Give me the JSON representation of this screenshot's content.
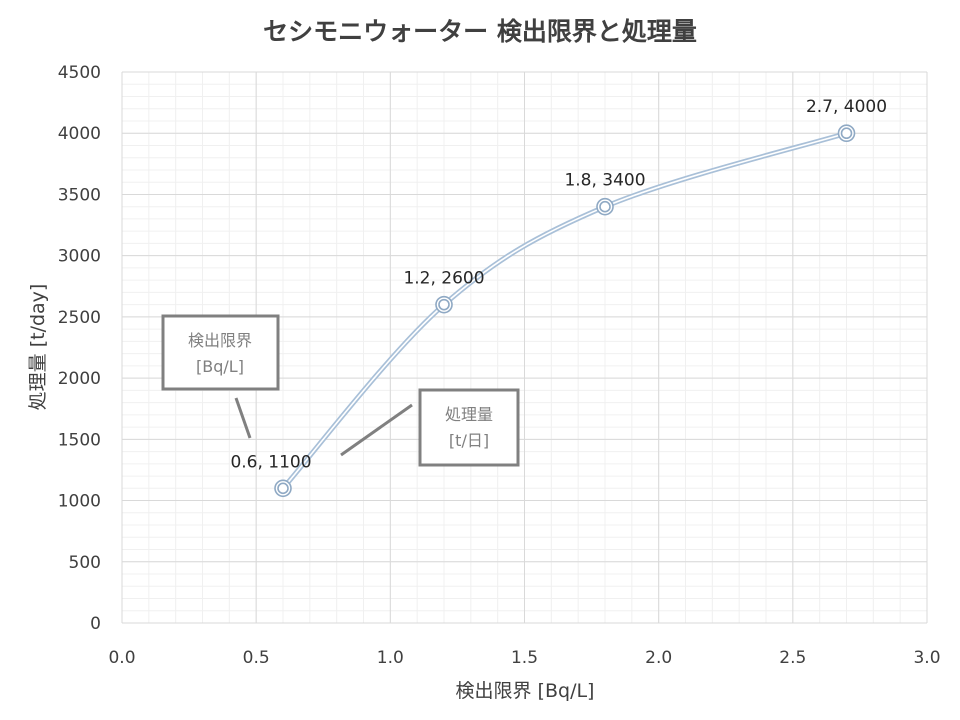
{
  "chart_data": {
    "type": "scatter",
    "title": "セシモニウォーター 検出限界と処理量",
    "xlabel": "検出限界 [Bq/L]",
    "ylabel": "処理量 [t/day]",
    "xlim": [
      0,
      3.0
    ],
    "ylim": [
      0,
      4500
    ],
    "x_major_step": 0.5,
    "y_major_step": 500,
    "x_tick_labels": [
      "0.0",
      "0.5",
      "1.0",
      "1.5",
      "2.0",
      "2.5",
      "3.0"
    ],
    "y_tick_labels": [
      "0",
      "500",
      "1000",
      "1500",
      "2000",
      "2500",
      "3000",
      "3500",
      "4000",
      "4500"
    ],
    "grid": true,
    "minor_grid": true,
    "smooth_line": true,
    "series": [
      {
        "x": [
          0.6,
          1.2,
          1.8,
          2.7
        ],
        "y": [
          1100,
          2600,
          3400,
          4000
        ],
        "labels": [
          "0.6, 1100",
          "1.2, 2600",
          "1.8, 3400",
          "2.7, 4000"
        ],
        "color": "#a9c0d8",
        "marker": "double-circle"
      }
    ],
    "annotations": [
      {
        "line1": "検出限界",
        "line2": "[Bq/L]"
      },
      {
        "line1": "処理量",
        "line2": "[t/日]"
      }
    ]
  }
}
